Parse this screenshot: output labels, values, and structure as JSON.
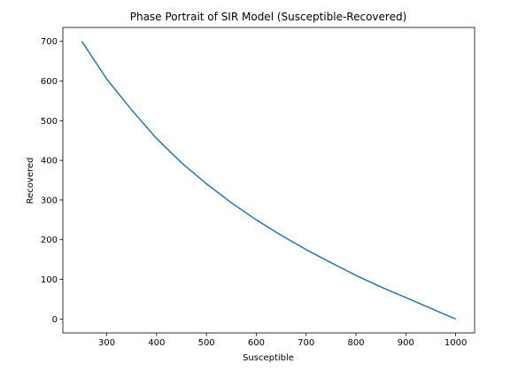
{
  "chart_data": {
    "type": "line",
    "title": "Phase Portrait of SIR Model (Susceptible-Recovered)",
    "xlabel": "Susceptible",
    "ylabel": "Recovered",
    "xlim": [
      212,
      1038
    ],
    "ylim": [
      -35,
      735
    ],
    "xticks": [
      300,
      400,
      500,
      600,
      700,
      800,
      900,
      1000
    ],
    "yticks": [
      0,
      100,
      200,
      300,
      400,
      500,
      600,
      700
    ],
    "grid": false,
    "series": [
      {
        "color": "#1f77b4",
        "x": [
          1000,
          950,
          900,
          850,
          800,
          750,
          700,
          650,
          600,
          550,
          500,
          450,
          400,
          350,
          300,
          250
        ],
        "y": [
          0,
          27,
          54,
          81,
          110,
          142,
          175,
          211,
          250,
          293,
          341,
          394,
          455,
          527,
          605,
          700
        ]
      }
    ]
  }
}
